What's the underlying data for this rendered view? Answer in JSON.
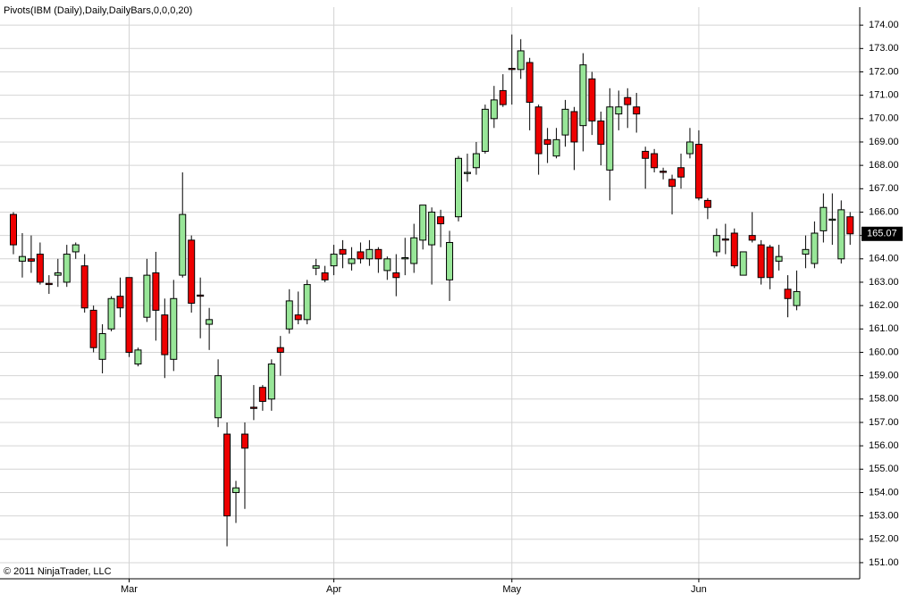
{
  "chart_data": {
    "type": "candlestick",
    "title": "Pivots(IBM (Daily),Daily,DailyBars,0,0,0,20)",
    "copyright": "© 2011 NinjaTrader, LLC",
    "categories": [
      null,
      null,
      null,
      null,
      null,
      null,
      null,
      null,
      null,
      null,
      null,
      null,
      null,
      "Mar",
      null,
      null,
      null,
      null,
      null,
      null,
      null,
      null,
      null,
      null,
      null,
      null,
      null,
      null,
      null,
      null,
      null,
      null,
      null,
      null,
      null,
      null,
      "Apr",
      null,
      null,
      null,
      null,
      null,
      null,
      null,
      null,
      null,
      null,
      null,
      null,
      null,
      null,
      null,
      null,
      null,
      null,
      null,
      "May",
      null,
      null,
      null,
      null,
      null,
      null,
      null,
      null,
      null,
      null,
      null,
      null,
      null,
      null,
      null,
      null,
      null,
      null,
      null,
      null,
      "Jun",
      null,
      null,
      null,
      null,
      null,
      null,
      null,
      null,
      null,
      null,
      null,
      null,
      null,
      null,
      null,
      null,
      null
    ],
    "open": [
      165.9,
      163.9,
      164.0,
      164.2,
      162.95,
      163.3,
      163.0,
      164.3,
      163.7,
      161.8,
      159.7,
      161.0,
      162.4,
      163.2,
      159.5,
      161.5,
      163.4,
      161.6,
      159.7,
      163.3,
      164.8,
      162.45,
      161.2,
      157.2,
      156.5,
      154.0,
      156.5,
      157.65,
      158.5,
      158.0,
      160.2,
      161.0,
      161.6,
      161.4,
      163.6,
      163.4,
      163.7,
      164.4,
      163.8,
      164.3,
      164.0,
      164.4,
      163.5,
      163.4,
      164.0,
      163.8,
      164.8,
      164.6,
      165.8,
      163.1,
      165.8,
      167.65,
      167.9,
      168.6,
      170.0,
      171.2,
      172.15,
      172.1,
      172.4,
      170.5,
      169.1,
      168.4,
      169.3,
      170.3,
      169.7,
      171.7,
      169.9,
      167.8,
      170.2,
      170.9,
      170.5,
      168.6,
      168.5,
      167.75,
      167.4,
      167.9,
      168.5,
      168.9,
      166.5,
      164.3,
      164.85,
      165.1,
      163.3,
      165.0,
      164.6,
      164.5,
      163.9,
      162.7,
      162.0,
      164.2,
      163.8,
      165.2,
      165.65,
      164.0,
      165.8
    ],
    "high": [
      166.0,
      165.1,
      165.0,
      164.7,
      163.3,
      164.0,
      164.6,
      164.7,
      164.2,
      162.0,
      161.2,
      162.4,
      163.2,
      163.2,
      160.2,
      164.0,
      164.3,
      162.3,
      163.1,
      167.7,
      165.0,
      163.2,
      161.9,
      159.7,
      157.0,
      154.5,
      157.0,
      158.6,
      158.6,
      159.7,
      160.7,
      162.7,
      162.6,
      163.1,
      164.0,
      163.7,
      164.6,
      164.8,
      164.5,
      164.7,
      164.8,
      164.5,
      164.1,
      164.2,
      164.9,
      165.5,
      166.3,
      166.2,
      166.1,
      165.2,
      168.4,
      168.5,
      169.0,
      170.6,
      171.4,
      171.9,
      173.6,
      173.4,
      172.6,
      170.6,
      169.6,
      169.6,
      170.8,
      170.5,
      172.8,
      172.0,
      170.3,
      171.3,
      171.2,
      171.3,
      171.1,
      168.8,
      168.7,
      167.9,
      167.6,
      168.5,
      169.6,
      169.5,
      166.6,
      165.3,
      165.5,
      165.3,
      164.3,
      166.0,
      164.8,
      164.6,
      164.6,
      163.3,
      163.5,
      165.0,
      165.6,
      166.8,
      166.8,
      166.5,
      166.0
    ],
    "low": [
      164.2,
      163.2,
      163.4,
      162.9,
      162.5,
      162.8,
      162.8,
      164.0,
      161.7,
      160.0,
      159.1,
      160.9,
      161.5,
      159.8,
      159.4,
      161.3,
      160.5,
      158.9,
      159.2,
      163.2,
      161.7,
      160.6,
      160.1,
      156.8,
      151.7,
      152.7,
      153.3,
      157.1,
      157.5,
      157.5,
      159.0,
      160.8,
      161.2,
      161.2,
      163.3,
      163.0,
      163.3,
      163.6,
      163.5,
      163.8,
      163.7,
      163.4,
      163.1,
      162.4,
      163.3,
      163.4,
      164.4,
      162.9,
      164.5,
      162.2,
      165.6,
      167.3,
      167.6,
      168.5,
      169.6,
      170.5,
      170.6,
      171.7,
      169.5,
      167.6,
      168.1,
      168.3,
      168.8,
      167.8,
      168.6,
      169.3,
      168.0,
      166.5,
      169.5,
      169.6,
      169.4,
      167.0,
      167.7,
      167.4,
      165.9,
      167.0,
      168.3,
      166.5,
      165.7,
      164.1,
      164.2,
      163.6,
      163.3,
      164.7,
      162.9,
      162.7,
      163.5,
      161.5,
      161.8,
      163.6,
      163.6,
      164.7,
      164.6,
      163.8,
      164.6
    ],
    "close": [
      164.6,
      164.1,
      163.9,
      163.0,
      162.9,
      163.4,
      164.2,
      164.6,
      161.9,
      160.2,
      160.8,
      162.3,
      161.9,
      160.0,
      160.1,
      163.3,
      161.8,
      159.9,
      162.3,
      165.9,
      162.1,
      162.4,
      161.4,
      159.0,
      153.0,
      154.2,
      155.9,
      157.6,
      157.9,
      159.5,
      160.0,
      162.2,
      161.4,
      162.9,
      163.7,
      163.1,
      164.2,
      164.2,
      164.0,
      164.0,
      164.4,
      164.0,
      164.0,
      163.2,
      164.05,
      164.9,
      166.3,
      166.0,
      165.5,
      164.7,
      168.3,
      167.7,
      168.5,
      170.4,
      170.8,
      170.6,
      172.1,
      172.9,
      170.7,
      168.5,
      168.9,
      169.1,
      170.4,
      169.0,
      172.3,
      169.9,
      168.9,
      170.5,
      170.5,
      170.6,
      170.2,
      168.3,
      167.9,
      167.7,
      167.1,
      167.5,
      169.0,
      166.6,
      166.2,
      165.0,
      164.8,
      163.7,
      164.3,
      164.8,
      163.2,
      163.2,
      164.1,
      162.3,
      162.6,
      164.4,
      165.1,
      166.2,
      165.7,
      166.1,
      165.07
    ],
    "up_color": "#98e698",
    "down_color": "#ee0000",
    "ylim": [
      150.31,
      174.77
    ],
    "yticks": [
      {
        "value": 151,
        "label": "151.00"
      },
      {
        "value": 152,
        "label": "152.00"
      },
      {
        "value": 153,
        "label": "153.00"
      },
      {
        "value": 154,
        "label": "154.00"
      },
      {
        "value": 155,
        "label": "155.00"
      },
      {
        "value": 156,
        "label": "156.00"
      },
      {
        "value": 157,
        "label": "157.00"
      },
      {
        "value": 158,
        "label": "158.00"
      },
      {
        "value": 159,
        "label": "159.00"
      },
      {
        "value": 160,
        "label": "160.00"
      },
      {
        "value": 161,
        "label": "161.00"
      },
      {
        "value": 162,
        "label": "162.00"
      },
      {
        "value": 163,
        "label": "163.00"
      },
      {
        "value": 164,
        "label": "164.00"
      },
      {
        "value": 165,
        "label": "165.00"
      },
      {
        "value": 166,
        "label": "166.00"
      },
      {
        "value": 167,
        "label": "167.00"
      },
      {
        "value": 168,
        "label": "168.00"
      },
      {
        "value": 169,
        "label": "169.00"
      },
      {
        "value": 170,
        "label": "170.00"
      },
      {
        "value": 171,
        "label": "171.00"
      },
      {
        "value": 172,
        "label": "172.00"
      },
      {
        "value": 173,
        "label": "173.00"
      },
      {
        "value": 174,
        "label": "174.00"
      }
    ],
    "grid": true
  }
}
